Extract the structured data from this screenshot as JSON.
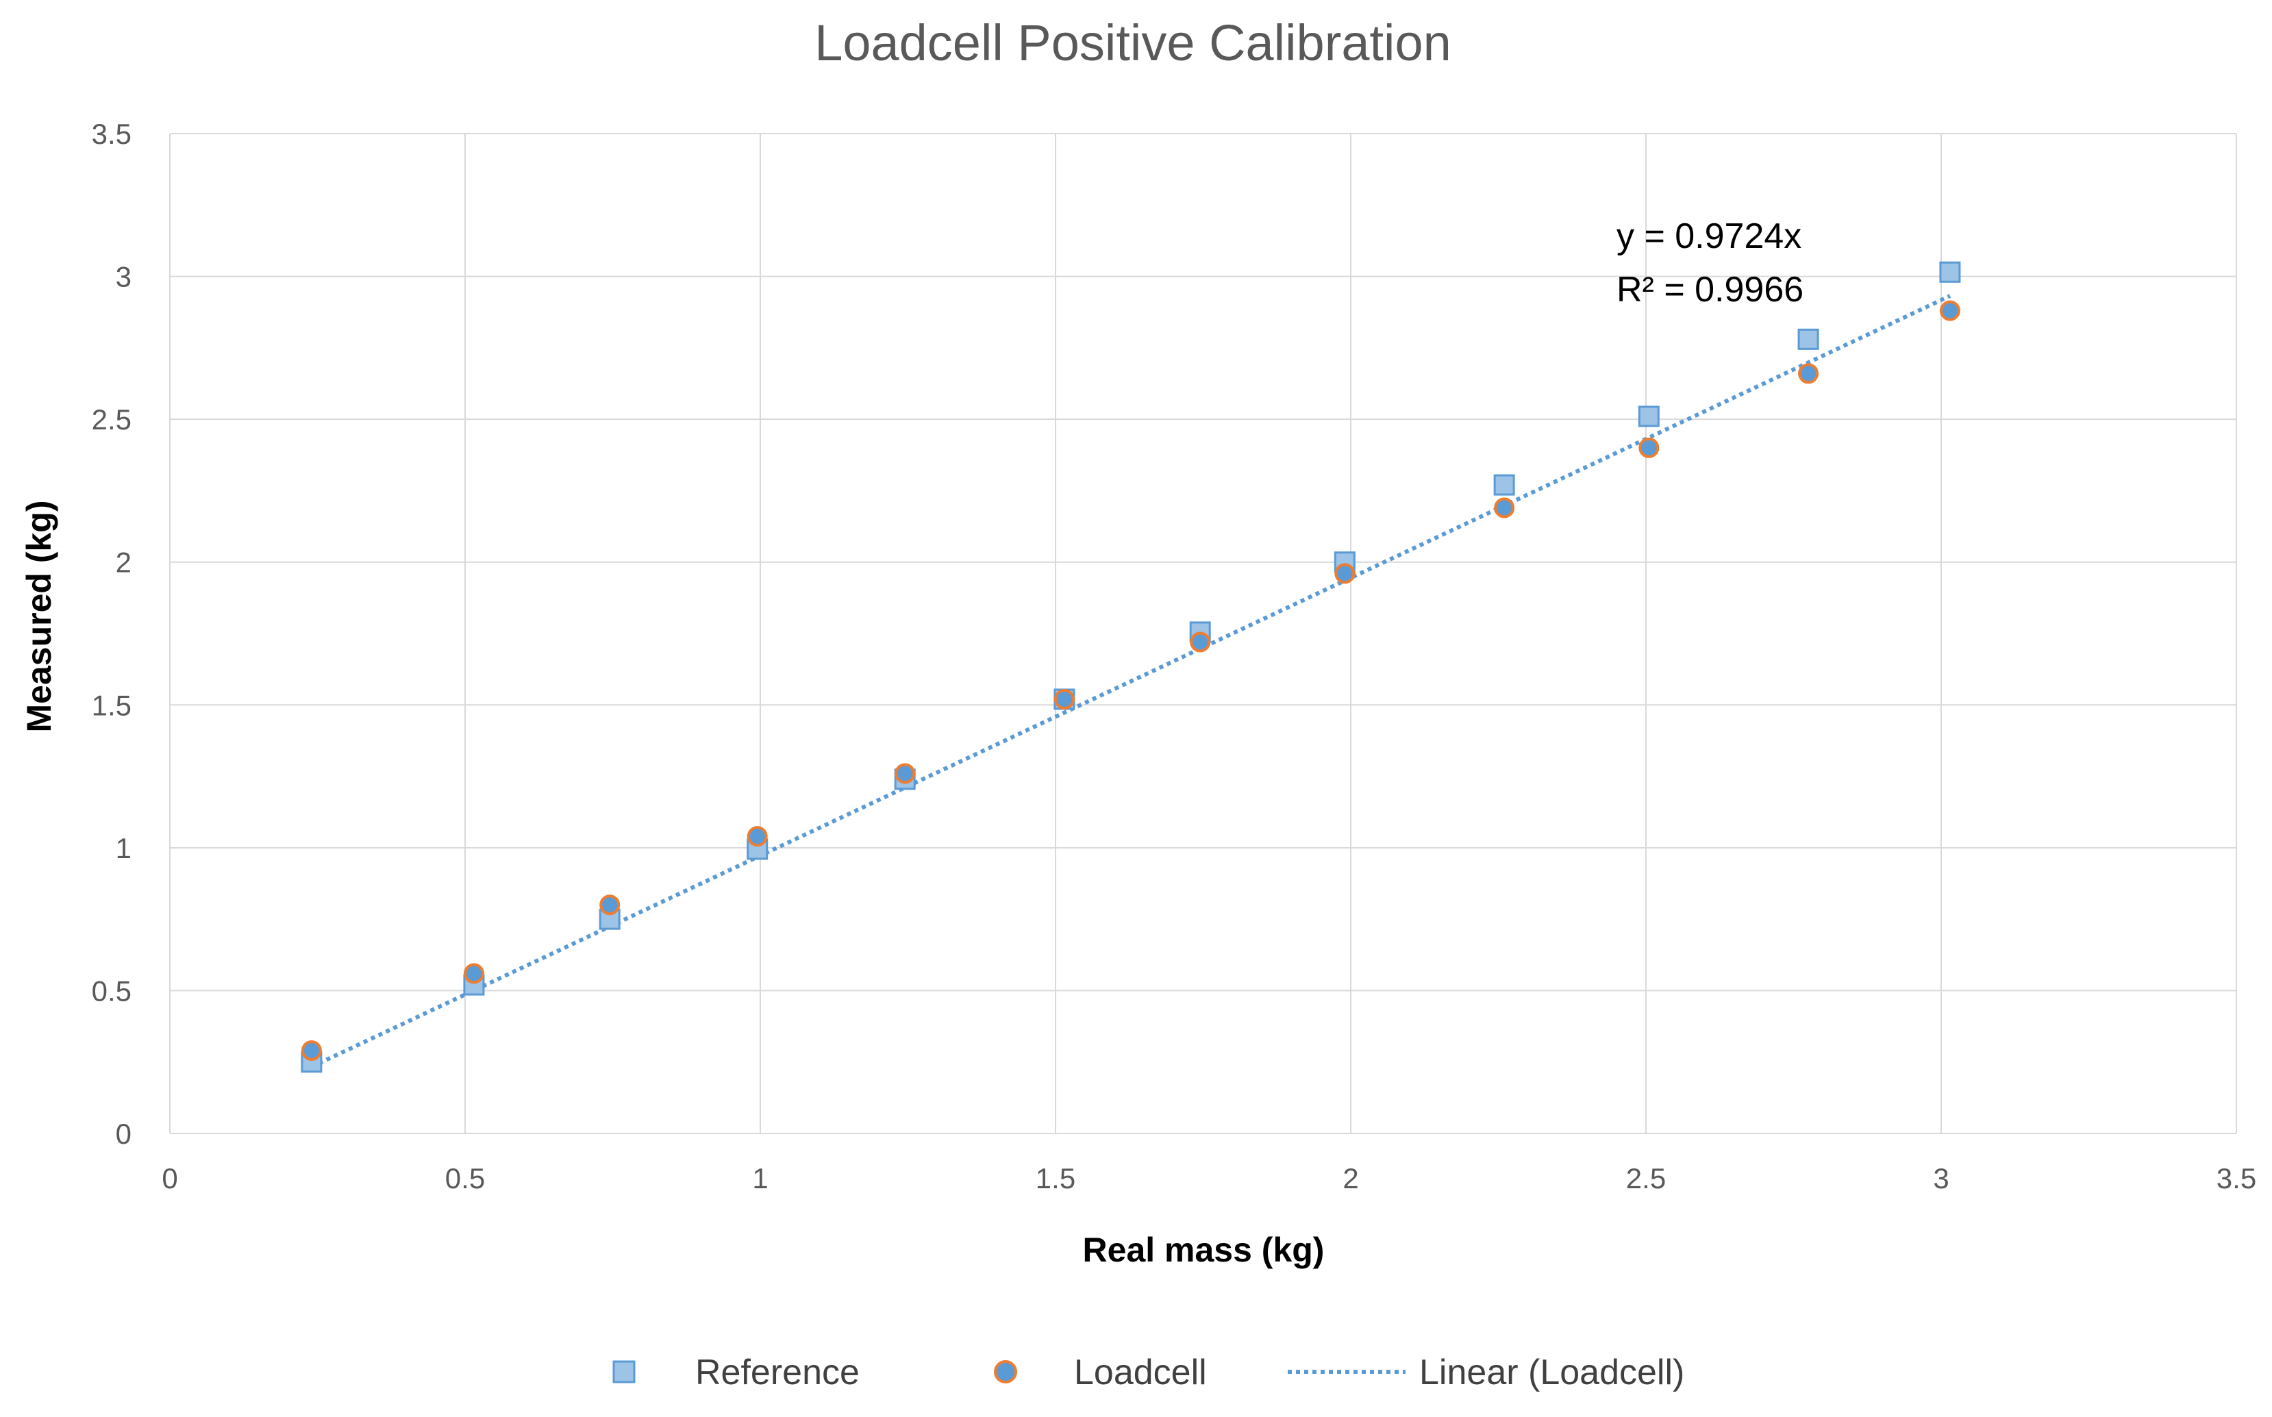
{
  "chart_data": {
    "type": "scatter",
    "title": "Loadcell Positive Calibration",
    "xlabel": "Real mass (kg)",
    "ylabel": "Measured (kg)",
    "xlim": [
      0,
      3.5
    ],
    "ylim": [
      0,
      3.5
    ],
    "x_ticks": [
      "0",
      "0.5",
      "1",
      "1.5",
      "2",
      "2.5",
      "3",
      "3.5"
    ],
    "y_ticks": [
      "0",
      "0.5",
      "1",
      "1.5",
      "2",
      "2.5",
      "3",
      "3.5"
    ],
    "grid": true,
    "legend_position": "bottom",
    "series": [
      {
        "name": "Reference",
        "marker": "square",
        "color": "#9DC3E6",
        "edge_color": "#5B9BD5",
        "points": [
          {
            "x": 0.24,
            "y": 0.25
          },
          {
            "x": 0.515,
            "y": 0.52
          },
          {
            "x": 0.745,
            "y": 0.75
          },
          {
            "x": 0.995,
            "y": 0.995
          },
          {
            "x": 1.245,
            "y": 1.24
          },
          {
            "x": 1.515,
            "y": 1.52
          },
          {
            "x": 1.745,
            "y": 1.755
          },
          {
            "x": 1.99,
            "y": 2.0
          },
          {
            "x": 2.26,
            "y": 2.27
          },
          {
            "x": 2.505,
            "y": 2.51
          },
          {
            "x": 2.775,
            "y": 2.78
          },
          {
            "x": 3.015,
            "y": 3.015
          }
        ]
      },
      {
        "name": "Loadcell",
        "marker": "circle",
        "color": "#5B9BD5",
        "edge_color": "#ED7D31",
        "points": [
          {
            "x": 0.24,
            "y": 0.29
          },
          {
            "x": 0.515,
            "y": 0.56
          },
          {
            "x": 0.745,
            "y": 0.8
          },
          {
            "x": 0.995,
            "y": 1.04
          },
          {
            "x": 1.245,
            "y": 1.26
          },
          {
            "x": 1.515,
            "y": 1.52
          },
          {
            "x": 1.745,
            "y": 1.72
          },
          {
            "x": 1.99,
            "y": 1.96
          },
          {
            "x": 2.26,
            "y": 2.19
          },
          {
            "x": 2.505,
            "y": 2.4
          },
          {
            "x": 2.775,
            "y": 2.66
          },
          {
            "x": 3.015,
            "y": 2.88
          }
        ]
      }
    ],
    "trendline": {
      "name": "Linear (Loadcell)",
      "slope": 0.9724,
      "intercept": 0,
      "x_range": [
        0.24,
        3.015
      ],
      "color": "#5B9BD5",
      "style": "dotted",
      "equation": "y = 0.9724x",
      "r_squared": "R² = 0.9966"
    },
    "colors": {
      "grid": "#D9D9D9",
      "tick_text": "#595959",
      "title_text": "#595959"
    }
  }
}
